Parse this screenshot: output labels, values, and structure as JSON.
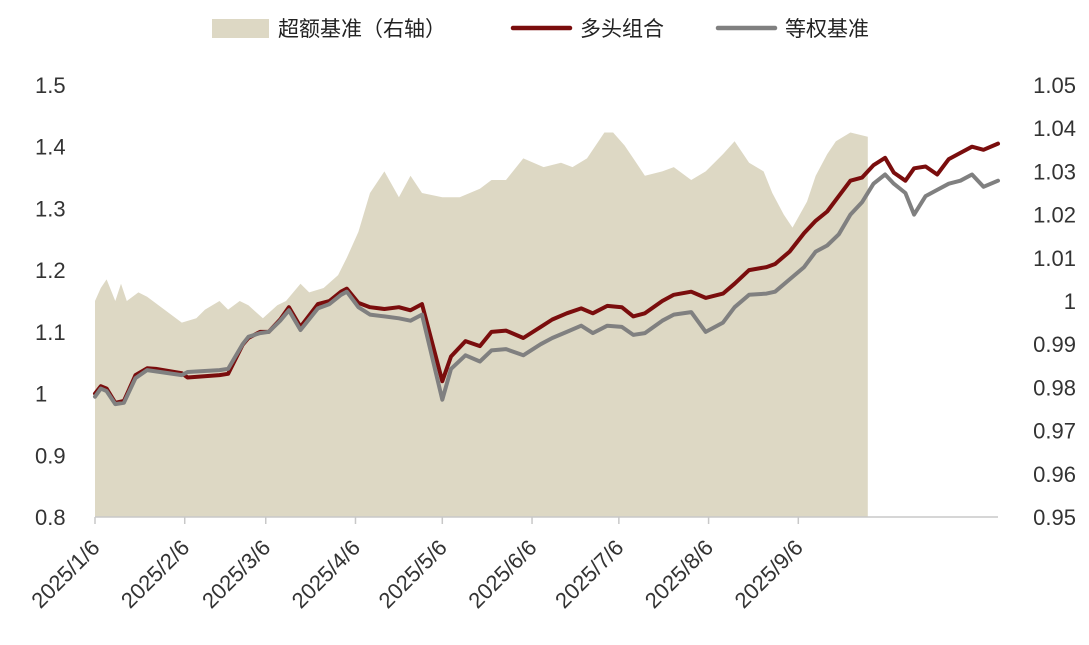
{
  "chart_data": {
    "type": "line",
    "legend_position": "top",
    "grid": false,
    "left_axis": {
      "range": [
        0.8,
        1.5
      ],
      "ticks": [
        "0.8",
        "0.9",
        "1",
        "1.1",
        "1.2",
        "1.3",
        "1.4",
        "1.5"
      ]
    },
    "right_axis": {
      "range": [
        0.95,
        1.05
      ],
      "ticks": [
        "0.95",
        "0.96",
        "0.97",
        "0.98",
        "0.99",
        "1",
        "1.01",
        "1.02",
        "1.03",
        "1.04",
        "1.05"
      ]
    },
    "x_ticks": [
      "2025/1/6",
      "2025/2/6",
      "2025/3/6",
      "2025/4/6",
      "2025/5/6",
      "2025/6/6",
      "2025/7/6",
      "2025/8/6",
      "2025/9/6"
    ],
    "series": [
      {
        "name": "超额基准（右轴）",
        "kind": "area",
        "axis": "right",
        "color": "#ddd8c4",
        "points": [
          [
            "2025-01-06",
            1.0
          ],
          [
            "2025-01-08",
            1.003
          ],
          [
            "2025-01-10",
            1.005
          ],
          [
            "2025-01-13",
            1.0
          ],
          [
            "2025-01-15",
            1.004
          ],
          [
            "2025-01-17",
            1.0
          ],
          [
            "2025-01-21",
            1.002
          ],
          [
            "2025-01-24",
            1.001
          ],
          [
            "2025-02-05",
            0.995
          ],
          [
            "2025-02-10",
            0.996
          ],
          [
            "2025-02-13",
            0.998
          ],
          [
            "2025-02-18",
            1.0
          ],
          [
            "2025-02-21",
            0.998
          ],
          [
            "2025-02-25",
            1.0
          ],
          [
            "2025-02-28",
            0.999
          ],
          [
            "2025-03-05",
            0.996
          ],
          [
            "2025-03-10",
            0.999
          ],
          [
            "2025-03-13",
            1.0
          ],
          [
            "2025-03-18",
            1.004
          ],
          [
            "2025-03-21",
            1.002
          ],
          [
            "2025-03-26",
            1.003
          ],
          [
            "2025-03-31",
            1.006
          ],
          [
            "2025-04-03",
            1.01
          ],
          [
            "2025-04-07",
            1.016
          ],
          [
            "2025-04-11",
            1.025
          ],
          [
            "2025-04-16",
            1.03
          ],
          [
            "2025-04-21",
            1.024
          ],
          [
            "2025-04-25",
            1.029
          ],
          [
            "2025-04-29",
            1.025
          ],
          [
            "2025-05-06",
            1.024
          ],
          [
            "2025-05-12",
            1.024
          ],
          [
            "2025-05-19",
            1.026
          ],
          [
            "2025-05-23",
            1.028
          ],
          [
            "2025-05-28",
            1.028
          ],
          [
            "2025-06-03",
            1.033
          ],
          [
            "2025-06-10",
            1.031
          ],
          [
            "2025-06-16",
            1.032
          ],
          [
            "2025-06-20",
            1.031
          ],
          [
            "2025-06-25",
            1.033
          ],
          [
            "2025-07-01",
            1.039
          ],
          [
            "2025-07-04",
            1.039
          ],
          [
            "2025-07-08",
            1.036
          ],
          [
            "2025-07-11",
            1.033
          ],
          [
            "2025-07-15",
            1.029
          ],
          [
            "2025-07-21",
            1.03
          ],
          [
            "2025-07-25",
            1.031
          ],
          [
            "2025-07-31",
            1.028
          ],
          [
            "2025-08-05",
            1.03
          ],
          [
            "2025-08-11",
            1.034
          ],
          [
            "2025-08-15",
            1.037
          ],
          [
            "2025-08-20",
            1.032
          ],
          [
            "2025-08-25",
            1.03
          ],
          [
            "2025-08-28",
            1.025
          ],
          [
            "2025-09-01",
            1.02
          ],
          [
            "2025-09-04",
            1.017
          ],
          [
            "2025-09-09",
            1.023
          ],
          [
            "2025-09-12",
            1.029
          ],
          [
            "2025-09-16",
            1.034
          ],
          [
            "2025-09-19",
            1.037
          ],
          [
            "2025-09-24",
            1.039
          ],
          [
            "2025-09-30",
            1.038
          ]
        ]
      },
      {
        "name": "多头组合",
        "kind": "line",
        "axis": "left",
        "color": "#7a0d0d",
        "points": [
          [
            "2025-01-06",
            1.0
          ],
          [
            "2025-01-08",
            1.012
          ],
          [
            "2025-01-10",
            1.008
          ],
          [
            "2025-01-13",
            0.985
          ],
          [
            "2025-01-16",
            0.988
          ],
          [
            "2025-01-20",
            1.03
          ],
          [
            "2025-01-24",
            1.041
          ],
          [
            "2025-01-27",
            1.04
          ],
          [
            "2025-02-05",
            1.033
          ],
          [
            "2025-02-07",
            1.026
          ],
          [
            "2025-02-18",
            1.03
          ],
          [
            "2025-02-21",
            1.032
          ],
          [
            "2025-02-26",
            1.079
          ],
          [
            "2025-02-28",
            1.09
          ],
          [
            "2025-03-04",
            1.1
          ],
          [
            "2025-03-07",
            1.1
          ],
          [
            "2025-03-11",
            1.12
          ],
          [
            "2025-03-14",
            1.14
          ],
          [
            "2025-03-18",
            1.108
          ],
          [
            "2025-03-24",
            1.145
          ],
          [
            "2025-03-28",
            1.15
          ],
          [
            "2025-04-01",
            1.165
          ],
          [
            "2025-04-03",
            1.17
          ],
          [
            "2025-04-07",
            1.147
          ],
          [
            "2025-04-11",
            1.14
          ],
          [
            "2025-04-16",
            1.137
          ],
          [
            "2025-04-21",
            1.14
          ],
          [
            "2025-04-25",
            1.135
          ],
          [
            "2025-04-29",
            1.145
          ],
          [
            "2025-05-06",
            1.02
          ],
          [
            "2025-05-09",
            1.06
          ],
          [
            "2025-05-14",
            1.085
          ],
          [
            "2025-05-19",
            1.077
          ],
          [
            "2025-05-23",
            1.1
          ],
          [
            "2025-05-28",
            1.102
          ],
          [
            "2025-06-03",
            1.09
          ],
          [
            "2025-06-09",
            1.108
          ],
          [
            "2025-06-13",
            1.12
          ],
          [
            "2025-06-18",
            1.13
          ],
          [
            "2025-06-23",
            1.138
          ],
          [
            "2025-06-27",
            1.13
          ],
          [
            "2025-07-02",
            1.142
          ],
          [
            "2025-07-07",
            1.14
          ],
          [
            "2025-07-11",
            1.125
          ],
          [
            "2025-07-15",
            1.13
          ],
          [
            "2025-07-21",
            1.15
          ],
          [
            "2025-07-25",
            1.16
          ],
          [
            "2025-07-31",
            1.165
          ],
          [
            "2025-08-05",
            1.155
          ],
          [
            "2025-08-11",
            1.162
          ],
          [
            "2025-08-15",
            1.178
          ],
          [
            "2025-08-20",
            1.2
          ],
          [
            "2025-08-26",
            1.205
          ],
          [
            "2025-08-29",
            1.21
          ],
          [
            "2025-09-03",
            1.23
          ],
          [
            "2025-09-08",
            1.26
          ],
          [
            "2025-09-12",
            1.28
          ],
          [
            "2025-09-16",
            1.295
          ],
          [
            "2025-09-20",
            1.32
          ],
          [
            "2025-09-24",
            1.345
          ],
          [
            "2025-09-28",
            1.35
          ],
          [
            "2025-10-02",
            1.37
          ],
          [
            "2025-10-06",
            1.382
          ],
          [
            "2025-10-09",
            1.358
          ],
          [
            "2025-10-13",
            1.345
          ],
          [
            "2025-10-16",
            1.365
          ],
          [
            "2025-10-20",
            1.368
          ],
          [
            "2025-10-24",
            1.355
          ],
          [
            "2025-10-28",
            1.38
          ],
          [
            "2025-11-01",
            1.39
          ],
          [
            "2025-11-05",
            1.4
          ],
          [
            "2025-11-09",
            1.395
          ],
          [
            "2025-11-14",
            1.405
          ]
        ]
      },
      {
        "name": "等权基准",
        "kind": "line",
        "axis": "left",
        "color": "#808080",
        "points": [
          [
            "2025-01-06",
            0.995
          ],
          [
            "2025-01-08",
            1.008
          ],
          [
            "2025-01-10",
            1.004
          ],
          [
            "2025-01-13",
            0.983
          ],
          [
            "2025-01-16",
            0.985
          ],
          [
            "2025-01-20",
            1.025
          ],
          [
            "2025-01-24",
            1.038
          ],
          [
            "2025-01-27",
            1.036
          ],
          [
            "2025-02-05",
            1.03
          ],
          [
            "2025-02-07",
            1.035
          ],
          [
            "2025-02-18",
            1.038
          ],
          [
            "2025-02-21",
            1.04
          ],
          [
            "2025-02-26",
            1.08
          ],
          [
            "2025-02-28",
            1.092
          ],
          [
            "2025-03-04",
            1.098
          ],
          [
            "2025-03-07",
            1.1
          ],
          [
            "2025-03-11",
            1.118
          ],
          [
            "2025-03-14",
            1.135
          ],
          [
            "2025-03-18",
            1.103
          ],
          [
            "2025-03-24",
            1.138
          ],
          [
            "2025-03-28",
            1.145
          ],
          [
            "2025-04-01",
            1.16
          ],
          [
            "2025-04-03",
            1.165
          ],
          [
            "2025-04-07",
            1.14
          ],
          [
            "2025-04-11",
            1.128
          ],
          [
            "2025-04-16",
            1.125
          ],
          [
            "2025-04-21",
            1.122
          ],
          [
            "2025-04-25",
            1.118
          ],
          [
            "2025-04-29",
            1.128
          ],
          [
            "2025-05-06",
            0.99
          ],
          [
            "2025-05-09",
            1.04
          ],
          [
            "2025-05-14",
            1.062
          ],
          [
            "2025-05-19",
            1.052
          ],
          [
            "2025-05-23",
            1.07
          ],
          [
            "2025-05-28",
            1.072
          ],
          [
            "2025-06-03",
            1.062
          ],
          [
            "2025-06-09",
            1.08
          ],
          [
            "2025-06-13",
            1.09
          ],
          [
            "2025-06-18",
            1.1
          ],
          [
            "2025-06-23",
            1.11
          ],
          [
            "2025-06-27",
            1.098
          ],
          [
            "2025-07-02",
            1.11
          ],
          [
            "2025-07-07",
            1.108
          ],
          [
            "2025-07-11",
            1.095
          ],
          [
            "2025-07-15",
            1.098
          ],
          [
            "2025-07-21",
            1.118
          ],
          [
            "2025-07-25",
            1.128
          ],
          [
            "2025-07-31",
            1.132
          ],
          [
            "2025-08-05",
            1.1
          ],
          [
            "2025-08-11",
            1.115
          ],
          [
            "2025-08-15",
            1.14
          ],
          [
            "2025-08-20",
            1.16
          ],
          [
            "2025-08-26",
            1.162
          ],
          [
            "2025-08-29",
            1.165
          ],
          [
            "2025-09-03",
            1.185
          ],
          [
            "2025-09-08",
            1.205
          ],
          [
            "2025-09-12",
            1.23
          ],
          [
            "2025-09-16",
            1.24
          ],
          [
            "2025-09-20",
            1.258
          ],
          [
            "2025-09-24",
            1.29
          ],
          [
            "2025-09-28",
            1.31
          ],
          [
            "2025-10-02",
            1.34
          ],
          [
            "2025-10-06",
            1.355
          ],
          [
            "2025-10-09",
            1.34
          ],
          [
            "2025-10-13",
            1.325
          ],
          [
            "2025-10-16",
            1.29
          ],
          [
            "2025-10-20",
            1.32
          ],
          [
            "2025-10-24",
            1.33
          ],
          [
            "2025-10-28",
            1.34
          ],
          [
            "2025-11-01",
            1.345
          ],
          [
            "2025-11-05",
            1.355
          ],
          [
            "2025-11-09",
            1.335
          ],
          [
            "2025-11-14",
            1.345
          ]
        ]
      }
    ]
  }
}
